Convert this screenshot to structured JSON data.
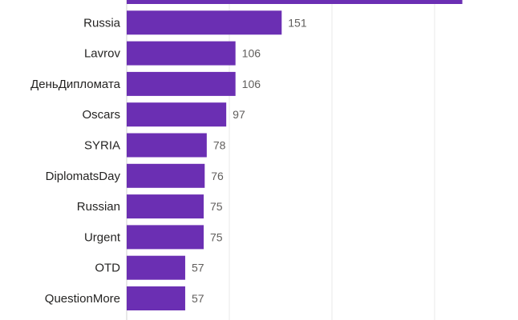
{
  "chart_data": {
    "type": "bar",
    "orientation": "horizontal",
    "categories": [
      "",
      "Russia",
      "Lavrov",
      "ДеньДипломата",
      "Oscars",
      "SYRIA",
      "DiplomatsDay",
      "Russian",
      "Urgent",
      "OTD",
      "QuestionMore"
    ],
    "values": [
      327,
      151,
      106,
      106,
      97,
      78,
      76,
      75,
      75,
      57,
      57
    ],
    "value_labels": [
      "",
      "151",
      "106",
      "106",
      "97",
      "78",
      "76",
      "75",
      "75",
      "57",
      "57"
    ],
    "xlim": [
      0,
      400
    ],
    "gridlines_at": [
      100,
      200,
      300,
      400
    ],
    "grid": true,
    "bar_color": "#6b2fb3",
    "gridline_color": "#e8e8e8"
  }
}
